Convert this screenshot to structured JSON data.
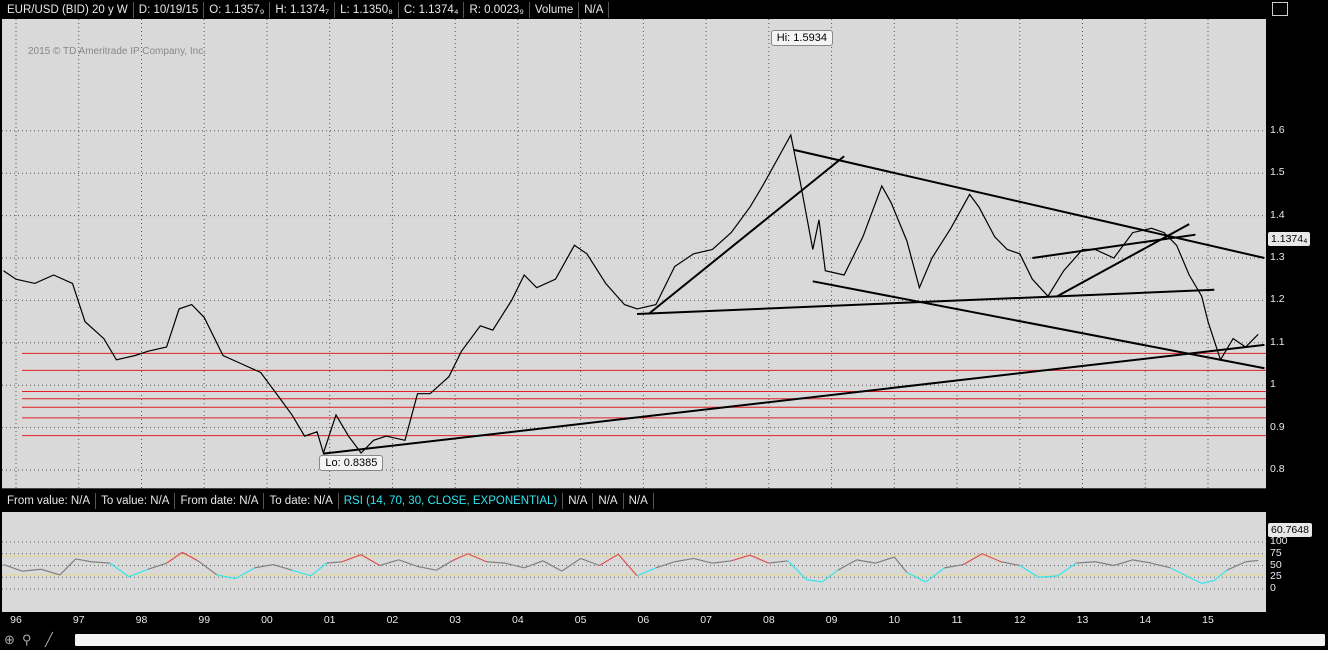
{
  "header": {
    "symbol": "EUR/USD (BID) 20 y W",
    "date": "D: 10/19/15",
    "open": "O: 1.1357₉",
    "high": "H: 1.1374₇",
    "low": "L: 1.1350₈",
    "close": "C: 1.1374₄",
    "range": "R: 0.0023₉",
    "volume": "Volume",
    "volume_value": "N/A"
  },
  "copyright": "2015 © TD Ameritrade IP Company, Inc.",
  "price_badge": "1.1374₄",
  "rsi_header": {
    "from_value": "From value: N/A",
    "to_value": "To value: N/A",
    "from_date": "From date: N/A",
    "to_date": "To date: N/A",
    "study": "RSI (14, 70, 30, CLOSE, EXPONENTIAL)",
    "na1": "N/A",
    "na2": "N/A",
    "na3": "N/A"
  },
  "rsi_badge": "60.7648",
  "colors": {
    "background": "#d9d9d9",
    "price_line": "#000000",
    "support_lines": "#e02020",
    "rsi_normal": "#808080",
    "rsi_overbought": "#e05050",
    "rsi_oversold": "#2fe6f2"
  },
  "chart_data": [
    {
      "type": "line",
      "title": "EUR/USD (BID) 20 y W",
      "x_unit": "year",
      "ylim": [
        0.75,
        1.65
      ],
      "y_ticks": [
        "0.8",
        "0.9",
        "1",
        "1.1",
        "1.2",
        "1.3",
        "1.4",
        "1.5",
        "1.6"
      ],
      "x_ticks": [
        "96",
        "97",
        "98",
        "99",
        "00",
        "01",
        "02",
        "03",
        "04",
        "05",
        "06",
        "07",
        "08",
        "09",
        "10",
        "11",
        "12",
        "13",
        "14",
        "15"
      ],
      "series": [
        {
          "x": [
            1995.8,
            1996.0,
            1996.3,
            1996.6,
            1996.9,
            1997.1,
            1997.4,
            1997.6,
            1997.9,
            1998.1,
            1998.4,
            1998.6,
            1998.8,
            1999.0,
            1999.3,
            1999.6,
            1999.9,
            2000.2,
            2000.4,
            2000.6,
            2000.8,
            2000.9,
            2001.1,
            2001.3,
            2001.5,
            2001.7,
            2001.9,
            2002.2,
            2002.4,
            2002.6,
            2002.9,
            2003.1,
            2003.4,
            2003.6,
            2003.9,
            2004.1,
            2004.3,
            2004.6,
            2004.9,
            2005.1,
            2005.4,
            2005.7,
            2005.9,
            2006.2,
            2006.5,
            2006.8,
            2007.1,
            2007.4,
            2007.7,
            2007.9,
            2008.2,
            2008.35,
            2008.5,
            2008.7,
            2008.8,
            2008.9,
            2009.2,
            2009.5,
            2009.8,
            2009.95,
            2010.2,
            2010.4,
            2010.6,
            2010.9,
            2011.2,
            2011.35,
            2011.6,
            2011.8,
            2012.0,
            2012.2,
            2012.45,
            2012.7,
            2013.0,
            2013.2,
            2013.5,
            2013.8,
            2014.1,
            2014.3,
            2014.5,
            2014.7,
            2014.9,
            2015.0,
            2015.2,
            2015.4,
            2015.6,
            2015.8
          ],
          "y": [
            1.27,
            1.25,
            1.24,
            1.26,
            1.24,
            1.15,
            1.11,
            1.06,
            1.07,
            1.08,
            1.09,
            1.18,
            1.19,
            1.16,
            1.07,
            1.05,
            1.03,
            0.97,
            0.93,
            0.88,
            0.89,
            0.84,
            0.93,
            0.88,
            0.84,
            0.87,
            0.88,
            0.87,
            0.98,
            0.98,
            1.02,
            1.08,
            1.14,
            1.13,
            1.2,
            1.26,
            1.23,
            1.25,
            1.33,
            1.31,
            1.24,
            1.19,
            1.18,
            1.19,
            1.28,
            1.31,
            1.32,
            1.36,
            1.42,
            1.47,
            1.55,
            1.59,
            1.48,
            1.32,
            1.39,
            1.27,
            1.26,
            1.35,
            1.47,
            1.43,
            1.34,
            1.23,
            1.3,
            1.37,
            1.45,
            1.42,
            1.35,
            1.32,
            1.31,
            1.25,
            1.21,
            1.27,
            1.32,
            1.32,
            1.3,
            1.36,
            1.37,
            1.36,
            1.33,
            1.26,
            1.21,
            1.15,
            1.06,
            1.11,
            1.09,
            1.12
          ]
        }
      ],
      "annotations": [
        {
          "label": "Hi: 1.5934",
          "x": 2008.35,
          "y": 1.5934
        },
        {
          "label": "Lo: 0.8385",
          "x": 2000.9,
          "y": 0.8385
        }
      ],
      "trend_lines": [
        {
          "x1": 2000.9,
          "y1": 0.8385,
          "x2": 2015.9,
          "y2": 1.095
        },
        {
          "x1": 2005.9,
          "y1": 1.168,
          "x2": 2015.1,
          "y2": 1.225
        },
        {
          "x1": 2008.4,
          "y1": 1.555,
          "x2": 2015.9,
          "y2": 1.3
        },
        {
          "x1": 2008.7,
          "y1": 1.245,
          "x2": 2015.9,
          "y2": 1.04
        },
        {
          "x1": 2006.1,
          "y1": 1.17,
          "x2": 2009.2,
          "y2": 1.54
        },
        {
          "x1": 2012.6,
          "y1": 1.21,
          "x2": 2014.7,
          "y2": 1.38
        },
        {
          "x1": 2012.2,
          "y1": 1.3,
          "x2": 2014.8,
          "y2": 1.355
        }
      ],
      "horizontal_levels": [
        1.075,
        1.035,
        0.985,
        0.968,
        0.948,
        0.923,
        0.881
      ]
    },
    {
      "type": "line",
      "title": "RSI (14, 70, 30, CLOSE, EXPONENTIAL)",
      "ylim": [
        -25,
        100
      ],
      "y_ticks": [
        "100",
        "75",
        "50",
        "25",
        "0"
      ],
      "overbought": 70,
      "oversold": 30,
      "last_value": 60.7648,
      "series": [
        {
          "x": [
            1995.8,
            1996.1,
            1996.4,
            1996.7,
            1996.95,
            1997.2,
            1997.5,
            1997.8,
            1998.1,
            1998.4,
            1998.65,
            1998.9,
            1999.2,
            1999.5,
            1999.8,
            2000.1,
            2000.4,
            2000.7,
            2000.95,
            2001.2,
            2001.5,
            2001.8,
            2002.1,
            2002.4,
            2002.7,
            2002.95,
            2003.2,
            2003.5,
            2003.8,
            2004.1,
            2004.4,
            2004.7,
            2005.0,
            2005.3,
            2005.6,
            2005.9,
            2006.2,
            2006.5,
            2006.8,
            2007.1,
            2007.4,
            2007.7,
            2008.0,
            2008.3,
            2008.6,
            2008.85,
            2009.1,
            2009.4,
            2009.7,
            2010.0,
            2010.2,
            2010.5,
            2010.8,
            2011.1,
            2011.4,
            2011.7,
            2012.0,
            2012.3,
            2012.6,
            2012.9,
            2013.2,
            2013.5,
            2013.8,
            2014.1,
            2014.4,
            2014.7,
            2014.9,
            2015.1,
            2015.3,
            2015.6,
            2015.8
          ],
          "y": [
            52,
            38,
            42,
            30,
            64,
            58,
            55,
            26,
            42,
            55,
            78,
            60,
            30,
            22,
            45,
            52,
            40,
            28,
            55,
            58,
            73,
            50,
            62,
            48,
            40,
            60,
            75,
            58,
            55,
            45,
            60,
            38,
            65,
            50,
            74,
            28,
            45,
            58,
            65,
            55,
            60,
            72,
            55,
            60,
            20,
            15,
            40,
            62,
            55,
            68,
            35,
            15,
            45,
            52,
            75,
            58,
            50,
            25,
            28,
            55,
            58,
            50,
            62,
            55,
            45,
            25,
            12,
            18,
            40,
            58,
            60.7648
          ]
        }
      ]
    }
  ]
}
